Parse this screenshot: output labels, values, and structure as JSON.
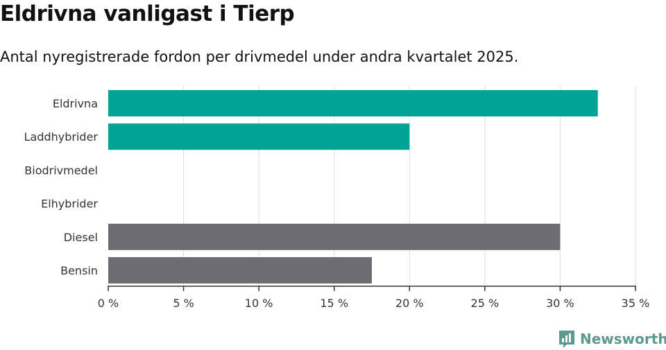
{
  "title": "Eldrivna vanligast i Tierp",
  "subtitle": "Antal nyregistrerade fordon per drivmedel under andra kvartalet 2025.",
  "brand": "Newsworthy",
  "colors": {
    "electric": "#00a396",
    "fossil": "#6d6c75",
    "grid": "#dddddd",
    "axis": "#333333",
    "brand": "#5a9a90"
  },
  "chart_data": {
    "type": "bar",
    "orientation": "horizontal",
    "categories": [
      "Eldrivna",
      "Laddhybrider",
      "Biodrivmedel",
      "Elhybrider",
      "Diesel",
      "Bensin"
    ],
    "values": [
      32.5,
      20,
      0,
      0,
      30,
      17.5
    ],
    "bar_colors": [
      "electric",
      "electric",
      "electric",
      "fossil",
      "fossil",
      "fossil"
    ],
    "xlim": [
      0,
      35
    ],
    "xticks": [
      0,
      5,
      10,
      15,
      20,
      25,
      30,
      35
    ],
    "tick_suffix": " %",
    "grid": true
  }
}
